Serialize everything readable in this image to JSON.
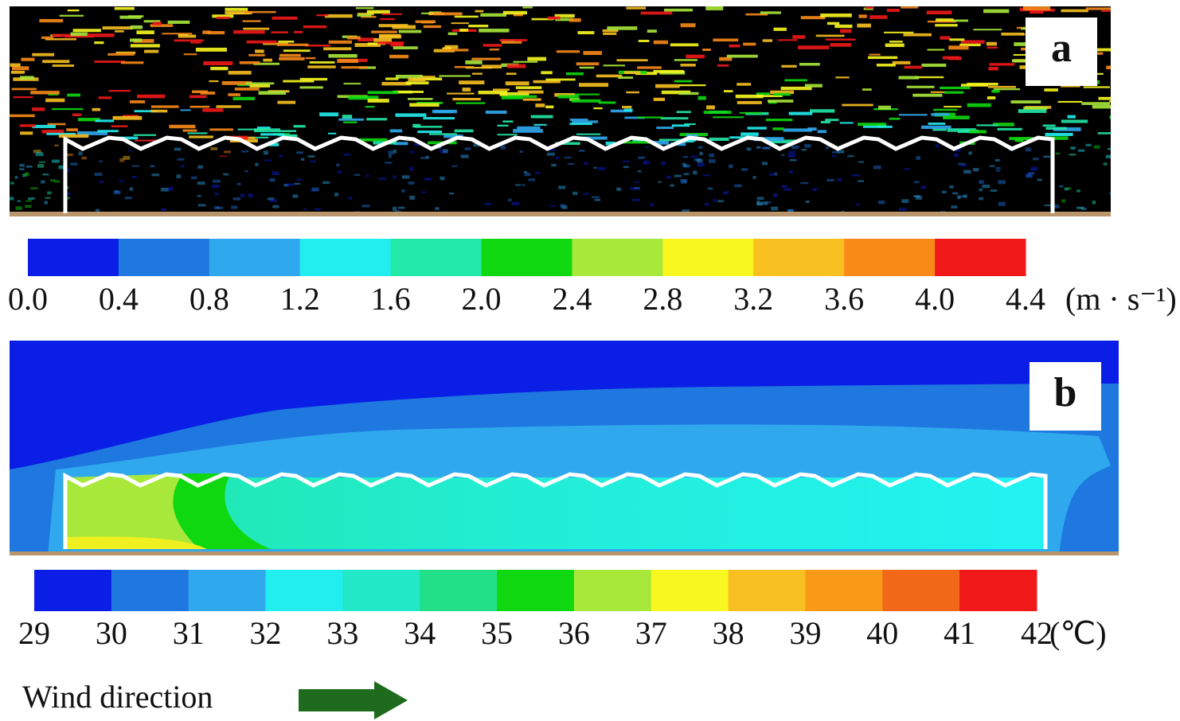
{
  "figure": {
    "panel_a": {
      "label": "a",
      "colorbar": {
        "ticks": [
          "0.0",
          "0.4",
          "0.8",
          "1.2",
          "1.6",
          "2.0",
          "2.4",
          "2.8",
          "3.2",
          "3.6",
          "4.0",
          "4.4"
        ],
        "unit": "(m · s⁻¹)",
        "colors": [
          "#0a1ee6",
          "#1f78e0",
          "#30a8ee",
          "#22eef0",
          "#22e8a8",
          "#10d810",
          "#a8e83a",
          "#f8f820",
          "#f8c020",
          "#f88a18",
          "#f01818"
        ]
      }
    },
    "panel_b": {
      "label": "b",
      "colorbar": {
        "ticks": [
          "29",
          "30",
          "31",
          "32",
          "33",
          "34",
          "35",
          "36",
          "37",
          "38",
          "39",
          "40",
          "41",
          "42"
        ],
        "unit": "(℃)",
        "colors": [
          "#0a1ee6",
          "#1f78e0",
          "#30a8ee",
          "#22eef0",
          "#22e8c8",
          "#22e088",
          "#10d810",
          "#a8e83a",
          "#f8f820",
          "#f8c020",
          "#f89a18",
          "#f06818",
          "#f01818"
        ]
      }
    },
    "wind_label": "Wind direction"
  }
}
